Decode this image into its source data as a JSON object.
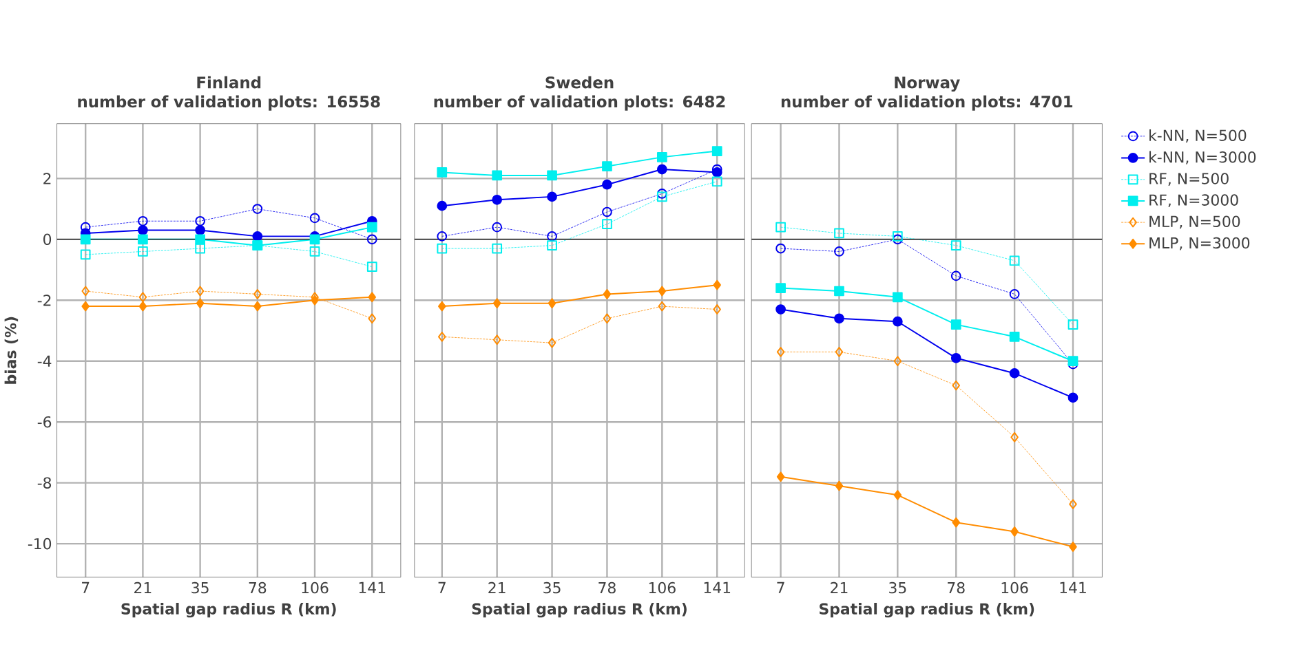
{
  "chart_data": [
    {
      "type": "line",
      "title": "Finland",
      "subtitle": "number of validation plots: 16558",
      "xlabel": "Spatial gap radius R (km)",
      "ylabel": "bias (%)",
      "categories": [
        "7",
        "21",
        "35",
        "78",
        "106",
        "141"
      ],
      "ylim": [
        -11.1,
        3.8
      ],
      "yticks": [
        -10,
        -8,
        -6,
        -4,
        -2,
        0,
        2
      ],
      "grid": true,
      "ref_lines": [
        {
          "axis": "y",
          "value": 0,
          "color": "#333333"
        }
      ],
      "series": [
        {
          "color": "#0000ee",
          "marker": "circle",
          "line_style": "dotted",
          "values": [
            0.4,
            0.6,
            0.6,
            1.0,
            0.7,
            0.0
          ]
        },
        {
          "color": "#0000ee",
          "marker": "circle",
          "line_style": "solid",
          "values": [
            0.2,
            0.3,
            0.3,
            0.1,
            0.1,
            0.6
          ]
        },
        {
          "color": "#00eeee",
          "marker": "square",
          "line_style": "dotted",
          "values": [
            -0.5,
            -0.4,
            -0.3,
            -0.2,
            -0.4,
            -0.9
          ]
        },
        {
          "color": "#00eeee",
          "marker": "square",
          "line_style": "solid",
          "values": [
            0.0,
            0.0,
            0.0,
            -0.2,
            0.0,
            0.4
          ]
        },
        {
          "color": "#ff8c00",
          "marker": "diamond",
          "line_style": "dotted",
          "values": [
            -1.7,
            -1.9,
            -1.7,
            -1.8,
            -1.9,
            -2.6
          ]
        },
        {
          "color": "#ff8c00",
          "marker": "diamond",
          "line_style": "solid",
          "values": [
            -2.2,
            -2.2,
            -2.1,
            -2.2,
            -2.0,
            -1.9
          ]
        }
      ]
    },
    {
      "type": "line",
      "title": "Sweden",
      "subtitle": "number of validation plots: 6482",
      "xlabel": "Spatial gap radius R (km)",
      "categories": [
        "7",
        "21",
        "35",
        "78",
        "106",
        "141"
      ],
      "ylim": [
        -11.1,
        3.8
      ],
      "yticks": [
        -10,
        -8,
        -6,
        -4,
        -2,
        0,
        2
      ],
      "grid": true,
      "tick_labels": "x",
      "ref_lines": [
        {
          "axis": "y",
          "value": 0,
          "color": "#333333"
        }
      ],
      "series": [
        {
          "color": "#0000ee",
          "marker": "circle",
          "line_style": "dotted",
          "values": [
            0.1,
            0.4,
            0.1,
            0.9,
            1.5,
            2.3
          ]
        },
        {
          "color": "#0000ee",
          "marker": "circle",
          "line_style": "solid",
          "values": [
            1.1,
            1.3,
            1.4,
            1.8,
            2.3,
            2.2
          ]
        },
        {
          "color": "#00eeee",
          "marker": "square",
          "line_style": "dotted",
          "values": [
            -0.3,
            -0.3,
            -0.2,
            0.5,
            1.4,
            1.9
          ]
        },
        {
          "color": "#00eeee",
          "marker": "square",
          "line_style": "solid",
          "values": [
            2.2,
            2.1,
            2.1,
            2.4,
            2.7,
            2.9
          ]
        },
        {
          "color": "#ff8c00",
          "marker": "diamond",
          "line_style": "dotted",
          "values": [
            -3.2,
            -3.3,
            -3.4,
            -2.6,
            -2.2,
            -2.3
          ]
        },
        {
          "color": "#ff8c00",
          "marker": "diamond",
          "line_style": "solid",
          "values": [
            -2.2,
            -2.1,
            -2.1,
            -1.8,
            -1.7,
            -1.5
          ]
        }
      ]
    },
    {
      "type": "line",
      "title": "Norway",
      "subtitle": "number of validation plots: 4701",
      "xlabel": "Spatial gap radius R (km)",
      "categories": [
        "7",
        "21",
        "35",
        "78",
        "106",
        "141"
      ],
      "ylim": [
        -11.1,
        3.8
      ],
      "yticks": [
        -10,
        -8,
        -6,
        -4,
        -2,
        0,
        2
      ],
      "grid": true,
      "tick_labels": "x",
      "legend": "right",
      "ref_lines": [
        {
          "axis": "y",
          "value": 0,
          "color": "#333333"
        }
      ],
      "series": [
        {
          "name": "k-NN, N=500",
          "color": "#0000ee",
          "marker": "circle",
          "line_style": "dotted",
          "values": [
            -0.3,
            -0.4,
            0.0,
            -1.2,
            -1.8,
            -4.1
          ]
        },
        {
          "name": "k-NN, N=3000",
          "color": "#0000ee",
          "marker": "circle",
          "line_style": "solid",
          "values": [
            -2.3,
            -2.6,
            -2.7,
            -3.9,
            -4.4,
            -5.2
          ]
        },
        {
          "name": "RF, N=500",
          "color": "#00eeee",
          "marker": "square",
          "line_style": "dotted",
          "values": [
            0.4,
            0.2,
            0.1,
            -0.2,
            -0.7,
            -2.8
          ]
        },
        {
          "name": "RF, N=3000",
          "color": "#00eeee",
          "marker": "square",
          "line_style": "solid",
          "values": [
            -1.6,
            -1.7,
            -1.9,
            -2.8,
            -3.2,
            -4.0
          ]
        },
        {
          "name": "MLP, N=500",
          "color": "#ff8c00",
          "marker": "diamond",
          "line_style": "dotted",
          "values": [
            -3.7,
            -3.7,
            -4.0,
            -4.8,
            -6.5,
            -8.7
          ]
        },
        {
          "name": "MLP, N=3000",
          "color": "#ff8c00",
          "marker": "diamond",
          "line_style": "solid",
          "values": [
            -7.8,
            -8.1,
            -8.4,
            -9.3,
            -9.6,
            -10.1
          ]
        }
      ]
    }
  ]
}
